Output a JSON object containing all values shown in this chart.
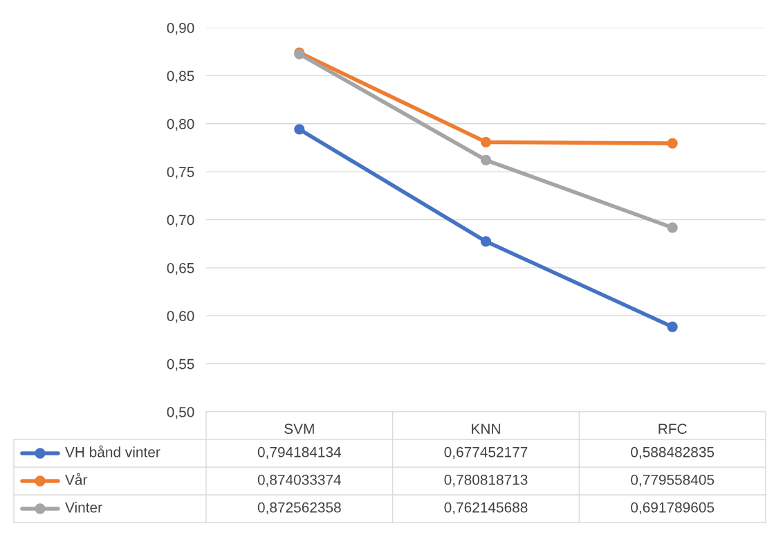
{
  "chart_data": {
    "type": "line",
    "categories": [
      "SVM",
      "KNN",
      "RFC"
    ],
    "series": [
      {
        "name": "VH bånd vinter",
        "color": "#4472c4",
        "values": [
          0.794184134,
          0.677452177,
          0.588482835
        ],
        "value_labels": [
          "0,794184134",
          "0,677452177",
          "0,588482835"
        ]
      },
      {
        "name": "Vår",
        "color": "#ed7d31",
        "values": [
          0.874033374,
          0.780818713,
          0.779558405
        ],
        "value_labels": [
          "0,874033374",
          "0,780818713",
          "0,779558405"
        ]
      },
      {
        "name": "Vinter",
        "color": "#a5a5a5",
        "values": [
          0.872562358,
          0.762145688,
          0.691789605
        ],
        "value_labels": [
          "0,872562358",
          "0,762145688",
          "0,691789605"
        ]
      }
    ],
    "ylim": [
      0.5,
      0.9
    ],
    "yticks": [
      {
        "value": 0.5,
        "label": "0,50"
      },
      {
        "value": 0.55,
        "label": "0,55"
      },
      {
        "value": 0.6,
        "label": "0,60"
      },
      {
        "value": 0.65,
        "label": "0,65"
      },
      {
        "value": 0.7,
        "label": "0,70"
      },
      {
        "value": 0.75,
        "label": "0,75"
      },
      {
        "value": 0.8,
        "label": "0,80"
      },
      {
        "value": 0.85,
        "label": "0,85"
      },
      {
        "value": 0.9,
        "label": "0,90"
      }
    ],
    "grid": "y",
    "marker": "circle",
    "line_style": "solid",
    "legend": "bottom"
  }
}
